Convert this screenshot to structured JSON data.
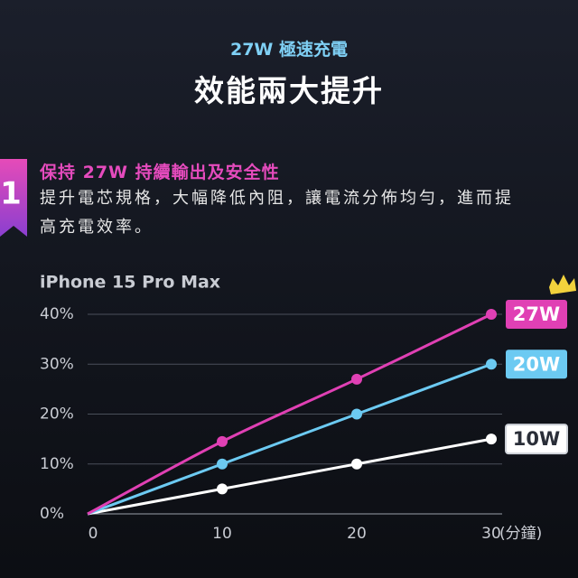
{
  "header": {
    "kicker": "27W 極速充電",
    "title": "效能兩大提升"
  },
  "section": {
    "number": "1",
    "heading": "保持 27W 持續輸出及安全性",
    "text": "提升電芯規格，大幅降低內阻，讓電流分佈均勻，進而提高充電效率。"
  },
  "chart_data": {
    "type": "line",
    "title": "iPhone 15 Pro Max",
    "x_label": "(分鐘)",
    "x": [
      0,
      10,
      20,
      30
    ],
    "series": [
      {
        "name": "27W",
        "color": "#e040b4",
        "values": [
          0,
          14.5,
          27,
          40
        ]
      },
      {
        "name": "20W",
        "color": "#6ccaf2",
        "values": [
          0,
          10,
          20,
          30
        ]
      },
      {
        "name": "10W",
        "color": "#ffffff",
        "values": [
          0,
          5,
          10,
          15
        ]
      }
    ],
    "xlim": [
      0,
      30
    ],
    "xticks": [
      0,
      10,
      20,
      30
    ],
    "ylim": [
      0,
      40
    ],
    "yticks": [
      {
        "value": 0,
        "label": "0%"
      },
      {
        "value": 10,
        "label": "10%"
      },
      {
        "value": 20,
        "label": "20%"
      },
      {
        "value": 30,
        "label": "30%"
      },
      {
        "value": 40,
        "label": "40%"
      }
    ],
    "grid": true
  }
}
